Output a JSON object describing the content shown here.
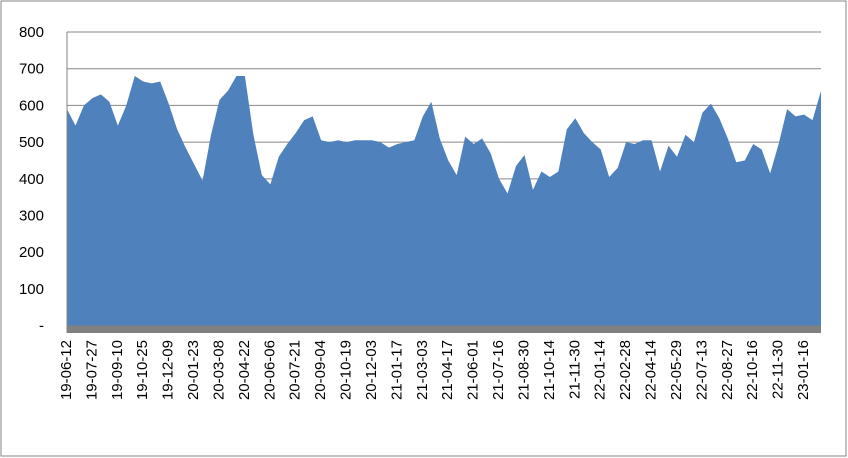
{
  "chart_data": {
    "type": "area",
    "categories": [
      "19-06-12",
      null,
      null,
      "19-07-27",
      null,
      null,
      "19-09-10",
      null,
      null,
      "19-10-25",
      null,
      null,
      "19-12-09",
      null,
      null,
      "20-01-23",
      null,
      null,
      "20-03-08",
      null,
      null,
      "20-04-22",
      null,
      null,
      "20-06-06",
      null,
      null,
      "20-07-21",
      null,
      null,
      "20-09-04",
      null,
      null,
      "20-10-19",
      null,
      null,
      "20-12-03",
      null,
      null,
      "21-01-17",
      null,
      null,
      "21-03-03",
      null,
      null,
      "21-04-17",
      null,
      null,
      "21-06-01",
      null,
      null,
      "21-07-16",
      null,
      null,
      "21-08-30",
      null,
      null,
      "21-10-14",
      null,
      null,
      "21-11-30",
      null,
      null,
      "22-01-14",
      null,
      null,
      "22-02-28",
      null,
      null,
      "22-04-14",
      null,
      null,
      "22-05-29",
      null,
      null,
      "22-07-13",
      null,
      null,
      "22-08-27",
      null,
      null,
      "22-10-16",
      null,
      null,
      "22-11-30",
      null,
      null,
      "23-01-16",
      null,
      null
    ],
    "series": [
      {
        "color": "#4f81bd",
        "values": [
          590,
          545,
          600,
          620,
          630,
          610,
          545,
          600,
          680,
          665,
          660,
          665,
          605,
          535,
          485,
          440,
          395,
          520,
          615,
          640,
          680,
          680,
          520,
          410,
          385,
          460,
          495,
          525,
          560,
          570,
          505,
          500,
          505,
          500,
          505,
          505,
          505,
          500,
          485,
          495,
          500,
          505,
          570,
          610,
          510,
          450,
          410,
          515,
          495,
          510,
          470,
          400,
          360,
          435,
          465,
          370,
          420,
          405,
          420,
          535,
          565,
          525,
          500,
          480,
          405,
          430,
          500,
          495,
          505,
          505,
          420,
          490,
          460,
          520,
          500,
          580,
          605,
          565,
          510,
          445,
          450,
          495,
          480,
          415,
          495,
          590,
          570,
          575,
          560,
          640
        ]
      },
      {
        "color": "#808080",
        "values": [
          -20,
          -20,
          -20,
          -20,
          -20,
          -20,
          -20,
          -20,
          -20,
          -20,
          -20,
          -20,
          -20,
          -20,
          -20,
          -20,
          -20,
          -20,
          -20,
          -20,
          -20,
          -20,
          -20,
          -20,
          -20,
          -20,
          -20,
          -20,
          -20,
          -20,
          -20,
          -20,
          -20,
          -20,
          -20,
          -20,
          -20,
          -20,
          -20,
          -20,
          -20,
          -20,
          -20,
          -20,
          -20,
          -20,
          -20,
          -20,
          -20,
          -20,
          -20,
          -20,
          -20,
          -20,
          -20,
          -20,
          -20,
          -20,
          -20,
          -20,
          -20,
          -20,
          -20,
          -20,
          -20,
          -20,
          -20,
          -20,
          -20,
          -20,
          -20,
          -20,
          -20,
          -20,
          -20,
          -20,
          -20,
          -20,
          -20,
          -20,
          -20,
          -20,
          -20,
          -20,
          -20,
          -20,
          -20,
          -20,
          -20,
          -20
        ]
      }
    ],
    "ylim": [
      -20,
      800
    ],
    "yticks": [
      {
        "value": 0,
        "label": "-"
      },
      100,
      200,
      300,
      400,
      500,
      600,
      700,
      800
    ],
    "grid": true
  }
}
